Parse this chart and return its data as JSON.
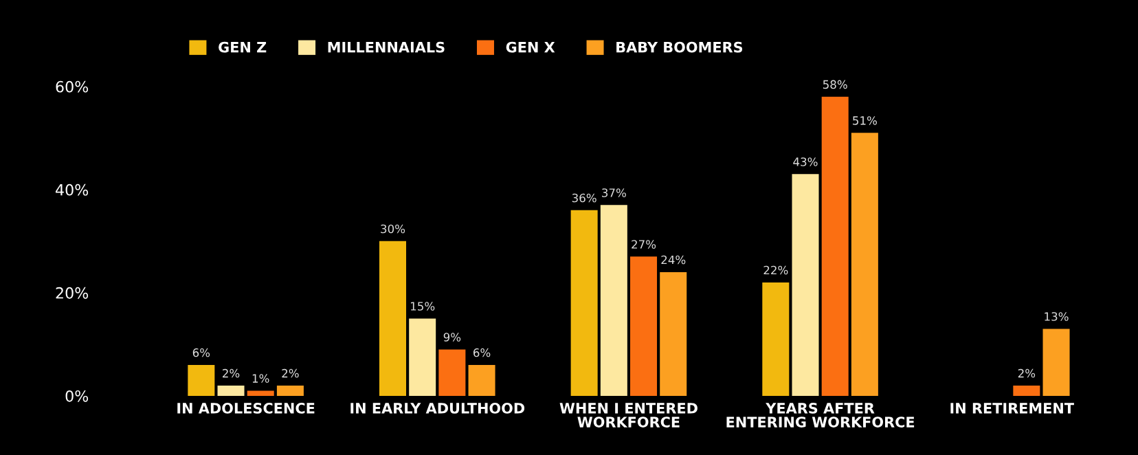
{
  "chart_data": {
    "type": "bar",
    "categories": [
      "IN ADOLESCENCE",
      "IN EARLY ADULTHOOD",
      "WHEN I ENTERED\nWORKFORCE",
      "YEARS AFTER\nENTERING WORKFORCE",
      "IN RETIREMENT"
    ],
    "series": [
      {
        "name": "GEN Z",
        "color": "#f2b90f",
        "values": [
          6,
          30,
          36,
          22,
          null
        ],
        "value_labels": [
          "6%",
          "30%",
          "36%",
          "22%",
          null
        ]
      },
      {
        "name": "MILLENNAIALS",
        "color": "#fde8a0",
        "values": [
          2,
          15,
          37,
          43,
          null
        ],
        "value_labels": [
          "2%",
          "15%",
          "37%",
          "43%",
          null
        ]
      },
      {
        "name": "GEN X",
        "color": "#fb6f12",
        "values": [
          1,
          9,
          27,
          58,
          2
        ],
        "value_labels": [
          "1%",
          "9%",
          "27%",
          "58%",
          "2%"
        ]
      },
      {
        "name": "BABY BOOMERS",
        "color": "#fca021",
        "values": [
          2,
          6,
          24,
          51,
          13
        ],
        "value_labels": [
          "2%",
          "6%",
          "24%",
          "51%",
          "13%"
        ]
      }
    ],
    "ylim": [
      0,
      60
    ],
    "yticks": [
      {
        "value": 0,
        "label": "0%"
      },
      {
        "value": 20,
        "label": "20%"
      },
      {
        "value": 40,
        "label": "40%"
      },
      {
        "value": 60,
        "label": "60%"
      }
    ],
    "grid": false,
    "legend": "top"
  }
}
